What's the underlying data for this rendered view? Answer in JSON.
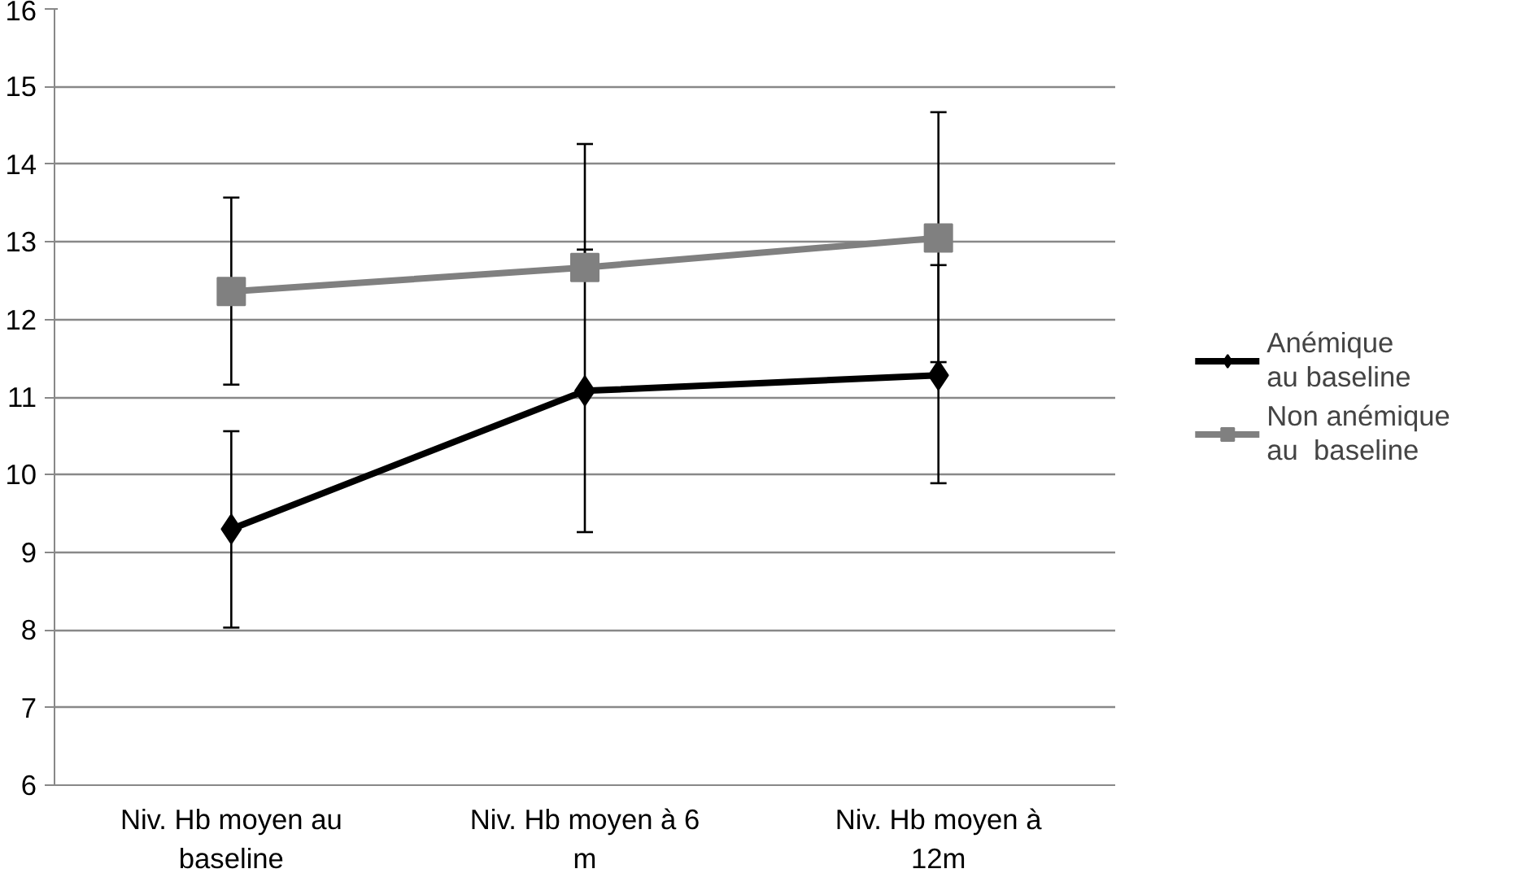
{
  "chart_data": {
    "type": "line",
    "categories": [
      "Niv. Hb moyen au baseline",
      "Niv. Hb moyen à 6 m",
      "Niv. Hb moyen à 12m"
    ],
    "series": [
      {
        "name": "Anémique au baseline",
        "color": "#000000",
        "marker": "diamond",
        "values": [
          9.3,
          11.08,
          11.28
        ],
        "errors": [
          [
            8.03,
            10.56
          ],
          [
            9.26,
            12.9
          ],
          [
            9.89,
            12.7
          ]
        ]
      },
      {
        "name": "Non anémique au  baseline",
        "color": "#808080",
        "marker": "square",
        "values": [
          12.36,
          12.67,
          13.05
        ],
        "errors": [
          [
            11.16,
            13.57
          ],
          [
            12.67,
            14.26
          ],
          [
            11.45,
            14.67
          ]
        ]
      }
    ],
    "ylim": [
      6,
      16
    ],
    "yticks": [
      6,
      7,
      8,
      9,
      10,
      11,
      12,
      13,
      14,
      15,
      16
    ],
    "grid": "y",
    "legend": "right"
  }
}
